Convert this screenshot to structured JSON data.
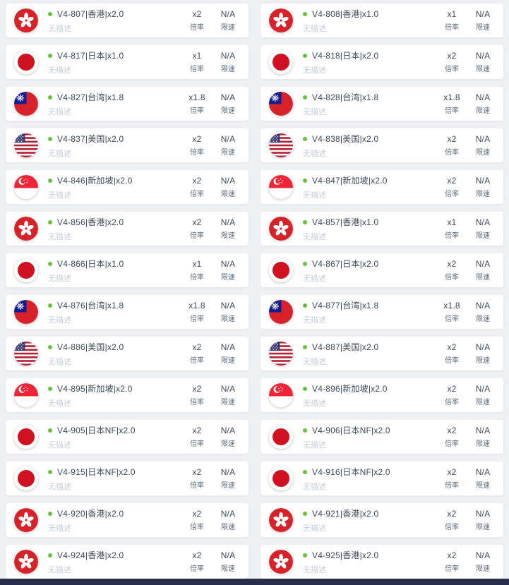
{
  "page": {
    "background_color": "#eef0f3",
    "footer_bar_color": "#262e49",
    "status_dot_color": "#67c23a",
    "card_color": "#ffffff"
  },
  "labels": {
    "rate_label": "倍率",
    "speed_label": "限速",
    "no_description": "无描述"
  },
  "nodes": [
    {
      "name": "V4-807|香港|x2.0",
      "flag_icon": "hk-flag-icon",
      "flag": "hk",
      "status": "online",
      "desc": "无描述",
      "rate": "x2",
      "rate_label": "倍率",
      "speed": "N/A",
      "speed_label": "限速"
    },
    {
      "name": "V4-808|香港|x1.0",
      "flag_icon": "hk-flag-icon",
      "flag": "hk",
      "status": "online",
      "desc": "无描述",
      "rate": "x1",
      "rate_label": "倍率",
      "speed": "N/A",
      "speed_label": "限速"
    },
    {
      "name": "V4-817|日本|x1.0",
      "flag_icon": "jp-flag-icon",
      "flag": "jp",
      "status": "online",
      "desc": "无描述",
      "rate": "x1",
      "rate_label": "倍率",
      "speed": "N/A",
      "speed_label": "限速"
    },
    {
      "name": "V4-818|日本|x2.0",
      "flag_icon": "jp-flag-icon",
      "flag": "jp",
      "status": "online",
      "desc": "无描述",
      "rate": "x2",
      "rate_label": "倍率",
      "speed": "N/A",
      "speed_label": "限速"
    },
    {
      "name": "V4-827|台湾|x1.8",
      "flag_icon": "tw-flag-icon",
      "flag": "tw",
      "status": "online",
      "desc": "无描述",
      "rate": "x1.8",
      "rate_label": "倍率",
      "speed": "N/A",
      "speed_label": "限速"
    },
    {
      "name": "V4-828|台湾|x1.8",
      "flag_icon": "tw-flag-icon",
      "flag": "tw",
      "status": "online",
      "desc": "无描述",
      "rate": "x1.8",
      "rate_label": "倍率",
      "speed": "N/A",
      "speed_label": "限速"
    },
    {
      "name": "V4-837|美国|x2.0",
      "flag_icon": "us-flag-icon",
      "flag": "us",
      "status": "online",
      "desc": "无描述",
      "rate": "x2",
      "rate_label": "倍率",
      "speed": "N/A",
      "speed_label": "限速"
    },
    {
      "name": "V4-838|美国|x2.0",
      "flag_icon": "us-flag-icon",
      "flag": "us",
      "status": "online",
      "desc": "无描述",
      "rate": "x2",
      "rate_label": "倍率",
      "speed": "N/A",
      "speed_label": "限速"
    },
    {
      "name": "V4-846|新加坡|x2.0",
      "flag_icon": "sg-flag-icon",
      "flag": "sg",
      "status": "online",
      "desc": "无描述",
      "rate": "x2",
      "rate_label": "倍率",
      "speed": "N/A",
      "speed_label": "限速"
    },
    {
      "name": "V4-847|新加坡|x2.0",
      "flag_icon": "sg-flag-icon",
      "flag": "sg",
      "status": "online",
      "desc": "无描述",
      "rate": "x2",
      "rate_label": "倍率",
      "speed": "N/A",
      "speed_label": "限速"
    },
    {
      "name": "V4-856|香港|x2.0",
      "flag_icon": "hk-flag-icon",
      "flag": "hk",
      "status": "online",
      "desc": "无描述",
      "rate": "x2",
      "rate_label": "倍率",
      "speed": "N/A",
      "speed_label": "限速"
    },
    {
      "name": "V4-857|香港|x1.0",
      "flag_icon": "hk-flag-icon",
      "flag": "hk",
      "status": "online",
      "desc": "无描述",
      "rate": "x1",
      "rate_label": "倍率",
      "speed": "N/A",
      "speed_label": "限速"
    },
    {
      "name": "V4-866|日本|x1.0",
      "flag_icon": "jp-flag-icon",
      "flag": "jp",
      "status": "online",
      "desc": "无描述",
      "rate": "x1",
      "rate_label": "倍率",
      "speed": "N/A",
      "speed_label": "限速"
    },
    {
      "name": "V4-867|日本|x2.0",
      "flag_icon": "jp-flag-icon",
      "flag": "jp",
      "status": "online",
      "desc": "无描述",
      "rate": "x2",
      "rate_label": "倍率",
      "speed": "N/A",
      "speed_label": "限速"
    },
    {
      "name": "V4-876|台湾|x1.8",
      "flag_icon": "tw-flag-icon",
      "flag": "tw",
      "status": "online",
      "desc": "无描述",
      "rate": "x1.8",
      "rate_label": "倍率",
      "speed": "N/A",
      "speed_label": "限速"
    },
    {
      "name": "V4-877|台湾|x1.8",
      "flag_icon": "tw-flag-icon",
      "flag": "tw",
      "status": "online",
      "desc": "无描述",
      "rate": "x1.8",
      "rate_label": "倍率",
      "speed": "N/A",
      "speed_label": "限速"
    },
    {
      "name": "V4-886|美国|x2.0",
      "flag_icon": "us-flag-icon",
      "flag": "us",
      "status": "online",
      "desc": "无描述",
      "rate": "x2",
      "rate_label": "倍率",
      "speed": "N/A",
      "speed_label": "限速"
    },
    {
      "name": "V4-887|美国|x2.0",
      "flag_icon": "us-flag-icon",
      "flag": "us",
      "status": "online",
      "desc": "无描述",
      "rate": "x2",
      "rate_label": "倍率",
      "speed": "N/A",
      "speed_label": "限速"
    },
    {
      "name": "V4-895|新加坡|x2.0",
      "flag_icon": "sg-flag-icon",
      "flag": "sg",
      "status": "online",
      "desc": "无描述",
      "rate": "x2",
      "rate_label": "倍率",
      "speed": "N/A",
      "speed_label": "限速"
    },
    {
      "name": "V4-896|新加坡|x2.0",
      "flag_icon": "sg-flag-icon",
      "flag": "sg",
      "status": "online",
      "desc": "无描述",
      "rate": "x2",
      "rate_label": "倍率",
      "speed": "N/A",
      "speed_label": "限速"
    },
    {
      "name": "V4-905|日本NF|x2.0",
      "flag_icon": "jp-flag-icon",
      "flag": "jp",
      "status": "online",
      "desc": "无描述",
      "rate": "x2",
      "rate_label": "倍率",
      "speed": "N/A",
      "speed_label": "限速"
    },
    {
      "name": "V4-906|日本NF|x2.0",
      "flag_icon": "jp-flag-icon",
      "flag": "jp",
      "status": "online",
      "desc": "无描述",
      "rate": "x2",
      "rate_label": "倍率",
      "speed": "N/A",
      "speed_label": "限速"
    },
    {
      "name": "V4-915|日本NF|x2.0",
      "flag_icon": "jp-flag-icon",
      "flag": "jp",
      "status": "online",
      "desc": "无描述",
      "rate": "x2",
      "rate_label": "倍率",
      "speed": "N/A",
      "speed_label": "限速"
    },
    {
      "name": "V4-916|日本NF|x2.0",
      "flag_icon": "jp-flag-icon",
      "flag": "jp",
      "status": "online",
      "desc": "无描述",
      "rate": "x2",
      "rate_label": "倍率",
      "speed": "N/A",
      "speed_label": "限速"
    },
    {
      "name": "V4-920|香港|x2.0",
      "flag_icon": "hk-flag-icon",
      "flag": "hk",
      "status": "online",
      "desc": "无描述",
      "rate": "x2",
      "rate_label": "倍率",
      "speed": "N/A",
      "speed_label": "限速"
    },
    {
      "name": "V4-921|香港|x2.0",
      "flag_icon": "hk-flag-icon",
      "flag": "hk",
      "status": "online",
      "desc": "无描述",
      "rate": "x2",
      "rate_label": "倍率",
      "speed": "N/A",
      "speed_label": "限速"
    },
    {
      "name": "V4-924|香港|x2.0",
      "flag_icon": "hk-flag-icon",
      "flag": "hk",
      "status": "online",
      "desc": "无描述",
      "rate": "x2",
      "rate_label": "倍率",
      "speed": "N/A",
      "speed_label": "限速"
    },
    {
      "name": "V4-925|香港|x2.0",
      "flag_icon": "hk-flag-icon",
      "flag": "hk",
      "status": "online",
      "desc": "无描述",
      "rate": "x2",
      "rate_label": "倍率",
      "speed": "N/A",
      "speed_label": "限速"
    }
  ]
}
